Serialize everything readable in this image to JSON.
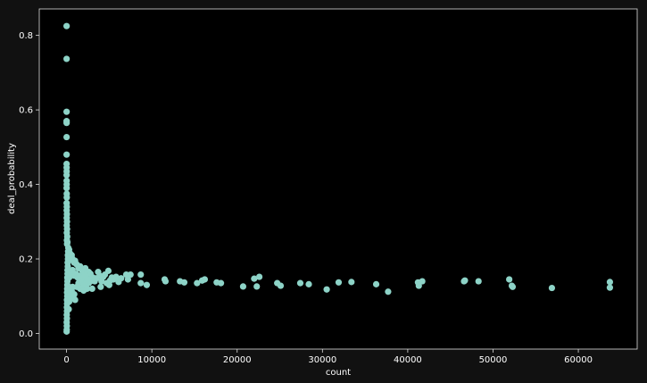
{
  "chart_data": {
    "type": "scatter",
    "title": "",
    "xlabel": "count",
    "ylabel": "deal_probability",
    "xlim": [
      -3200,
      66900
    ],
    "ylim": [
      -0.042,
      0.871
    ],
    "xticks": [
      0,
      10000,
      20000,
      30000,
      40000,
      50000,
      60000
    ],
    "xtick_labels": [
      "0",
      "10000",
      "20000",
      "30000",
      "40000",
      "50000",
      "60000"
    ],
    "yticks": [
      0.0,
      0.2,
      0.4,
      0.6,
      0.8
    ],
    "ytick_labels": [
      "0.0",
      "0.2",
      "0.4",
      "0.6",
      "0.8"
    ],
    "grid": false,
    "colors": {
      "point": "#8dd3c7",
      "background": "#000000",
      "figure": "#111111",
      "axis": "#dddddd",
      "text": "#ffffff"
    },
    "series": [
      {
        "points": [
          [
            5,
            0.825
          ],
          [
            5,
            0.737
          ],
          [
            5,
            0.595
          ],
          [
            5,
            0.57
          ],
          [
            5,
            0.565
          ],
          [
            5,
            0.527
          ],
          [
            5,
            0.48
          ],
          [
            5,
            0.455
          ],
          [
            8,
            0.445
          ],
          [
            12,
            0.435
          ],
          [
            6,
            0.425
          ],
          [
            10,
            0.41
          ],
          [
            15,
            0.4
          ],
          [
            8,
            0.39
          ],
          [
            20,
            0.375
          ],
          [
            25,
            0.365
          ],
          [
            10,
            0.35
          ],
          [
            30,
            0.34
          ],
          [
            15,
            0.33
          ],
          [
            40,
            0.32
          ],
          [
            20,
            0.31
          ],
          [
            50,
            0.3
          ],
          [
            25,
            0.29
          ],
          [
            60,
            0.28
          ],
          [
            30,
            0.27
          ],
          [
            80,
            0.26
          ],
          [
            40,
            0.25
          ],
          [
            100,
            0.245
          ],
          [
            60,
            0.24
          ],
          [
            10,
            0.005
          ],
          [
            20,
            0.01
          ],
          [
            30,
            0.02
          ],
          [
            15,
            0.03
          ],
          [
            40,
            0.04
          ],
          [
            25,
            0.05
          ],
          [
            50,
            0.06
          ],
          [
            35,
            0.07
          ],
          [
            60,
            0.08
          ],
          [
            45,
            0.09
          ],
          [
            80,
            0.1
          ],
          [
            55,
            0.11
          ],
          [
            70,
            0.12
          ],
          [
            90,
            0.13
          ],
          [
            100,
            0.14
          ],
          [
            85,
            0.15
          ],
          [
            120,
            0.16
          ],
          [
            110,
            0.17
          ],
          [
            140,
            0.18
          ],
          [
            130,
            0.19
          ],
          [
            160,
            0.2
          ],
          [
            150,
            0.21
          ],
          [
            180,
            0.22
          ],
          [
            200,
            0.23
          ],
          [
            250,
            0.065
          ],
          [
            300,
            0.085
          ],
          [
            350,
            0.1
          ],
          [
            400,
            0.11
          ],
          [
            450,
            0.105
          ],
          [
            500,
            0.12
          ],
          [
            600,
            0.115
          ],
          [
            700,
            0.125
          ],
          [
            800,
            0.095
          ],
          [
            900,
            0.105
          ],
          [
            1000,
            0.09
          ],
          [
            300,
            0.225
          ],
          [
            400,
            0.215
          ],
          [
            500,
            0.205
          ],
          [
            600,
            0.21
          ],
          [
            700,
            0.2
          ],
          [
            800,
            0.195
          ],
          [
            900,
            0.19
          ],
          [
            1000,
            0.195
          ],
          [
            1200,
            0.185
          ],
          [
            1400,
            0.175
          ],
          [
            1600,
            0.18
          ],
          [
            1800,
            0.17
          ],
          [
            2000,
            0.165
          ],
          [
            2200,
            0.175
          ],
          [
            2400,
            0.16
          ],
          [
            2600,
            0.165
          ],
          [
            1200,
            0.125
          ],
          [
            1400,
            0.135
          ],
          [
            1600,
            0.12
          ],
          [
            1800,
            0.14
          ],
          [
            2000,
            0.13
          ],
          [
            2200,
            0.145
          ],
          [
            2400,
            0.12
          ],
          [
            2600,
            0.135
          ],
          [
            2800,
            0.14
          ],
          [
            3000,
            0.15
          ],
          [
            300,
            0.15
          ],
          [
            500,
            0.16
          ],
          [
            700,
            0.17
          ],
          [
            900,
            0.155
          ],
          [
            1100,
            0.16
          ],
          [
            1300,
            0.15
          ],
          [
            1500,
            0.155
          ],
          [
            1700,
            0.145
          ],
          [
            1900,
            0.15
          ],
          [
            2100,
            0.155
          ],
          [
            2500,
            0.145
          ],
          [
            2800,
            0.16
          ],
          [
            3100,
            0.15
          ],
          [
            3300,
            0.14
          ],
          [
            3500,
            0.148
          ],
          [
            3700,
            0.165
          ],
          [
            3900,
            0.155
          ],
          [
            4100,
            0.14
          ],
          [
            4300,
            0.152
          ],
          [
            4500,
            0.158
          ],
          [
            4700,
            0.135
          ],
          [
            4900,
            0.168
          ],
          [
            5100,
            0.142
          ],
          [
            5300,
            0.15
          ],
          [
            5500,
            0.145
          ],
          [
            5800,
            0.152
          ],
          [
            6100,
            0.138
          ],
          [
            6400,
            0.148
          ],
          [
            2000,
            0.115
          ],
          [
            3000,
            0.12
          ],
          [
            4000,
            0.125
          ],
          [
            5000,
            0.13
          ],
          [
            7000,
            0.158
          ],
          [
            7200,
            0.145
          ],
          [
            7500,
            0.158
          ],
          [
            8700,
            0.158
          ],
          [
            8700,
            0.135
          ],
          [
            9400,
            0.13
          ],
          [
            11500,
            0.145
          ],
          [
            11600,
            0.14
          ],
          [
            13300,
            0.14
          ],
          [
            13800,
            0.137
          ],
          [
            15300,
            0.135
          ],
          [
            15900,
            0.142
          ],
          [
            16200,
            0.145
          ],
          [
            17600,
            0.137
          ],
          [
            18100,
            0.135
          ],
          [
            20700,
            0.126
          ],
          [
            22000,
            0.147
          ],
          [
            22300,
            0.126
          ],
          [
            22600,
            0.152
          ],
          [
            24700,
            0.135
          ],
          [
            25100,
            0.128
          ],
          [
            27400,
            0.135
          ],
          [
            28400,
            0.132
          ],
          [
            30500,
            0.118
          ],
          [
            31900,
            0.137
          ],
          [
            33400,
            0.138
          ],
          [
            36300,
            0.132
          ],
          [
            37700,
            0.112
          ],
          [
            41200,
            0.137
          ],
          [
            41300,
            0.128
          ],
          [
            41700,
            0.14
          ],
          [
            46600,
            0.14
          ],
          [
            46700,
            0.142
          ],
          [
            48300,
            0.14
          ],
          [
            51900,
            0.145
          ],
          [
            52200,
            0.128
          ],
          [
            52300,
            0.125
          ],
          [
            56900,
            0.122
          ],
          [
            63700,
            0.138
          ],
          [
            63700,
            0.123
          ]
        ]
      }
    ]
  }
}
